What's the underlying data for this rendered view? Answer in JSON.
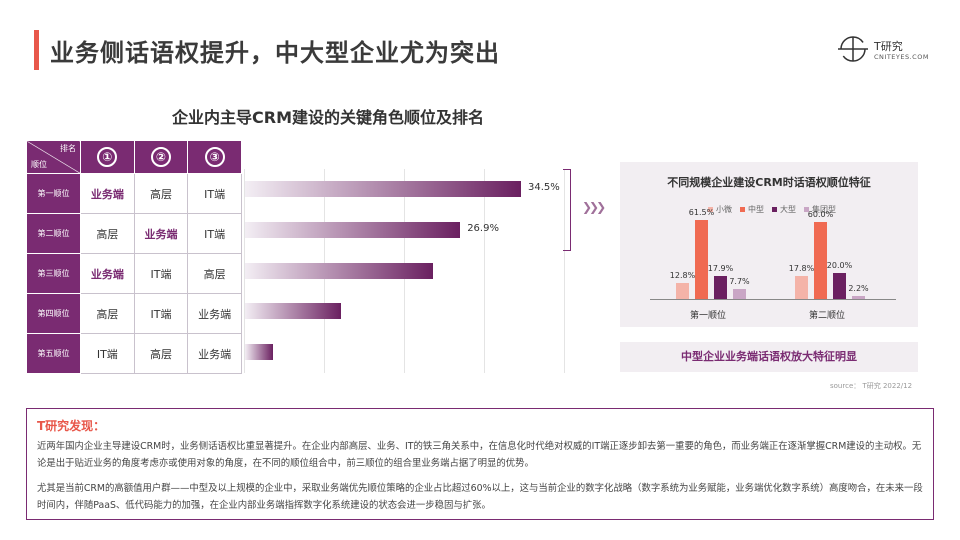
{
  "header": {
    "title": "业务侧话语权提升，中大型企业尤为突出",
    "logo_name": "T研究",
    "logo_url": "CNITEYES.COM"
  },
  "chart_title": "企业内主导CRM建设的关键角色顺位及排名",
  "rank_table": {
    "corner_top": "排名",
    "corner_bottom": "顺位",
    "ranks": [
      "①",
      "②",
      "③"
    ],
    "rows": [
      {
        "label": "第一顺位",
        "cells": [
          "业务端",
          "高层",
          "IT端"
        ]
      },
      {
        "label": "第二顺位",
        "cells": [
          "高层",
          "业务端",
          "IT端"
        ]
      },
      {
        "label": "第三顺位",
        "cells": [
          "业务端",
          "IT端",
          "高层"
        ]
      },
      {
        "label": "第四顺位",
        "cells": [
          "高层",
          "IT端",
          "业务端"
        ]
      },
      {
        "label": "第五顺位",
        "cells": [
          "IT端",
          "高层",
          "业务端"
        ]
      }
    ]
  },
  "chart_data": [
    {
      "type": "bar",
      "orientation": "horizontal",
      "categories": [
        "第一顺位",
        "第二顺位",
        "第三顺位",
        "第四顺位",
        "第五顺位"
      ],
      "values": [
        34.5,
        26.9,
        23.5,
        12.0,
        3.5
      ],
      "labels": [
        "34.5%",
        "26.9%",
        "",
        "",
        ""
      ],
      "xlim": [
        0,
        40
      ],
      "grid": true
    },
    {
      "type": "bar",
      "title": "不同规模企业建设CRM时话语权顺位特征",
      "categories": [
        "第一顺位",
        "第二顺位"
      ],
      "series": [
        {
          "name": "小微",
          "color": "#f4b3a8",
          "values": [
            12.8,
            17.8
          ],
          "labels": [
            "12.8%",
            "17.8%"
          ]
        },
        {
          "name": "中型",
          "color": "#f06a52",
          "values": [
            61.5,
            60.0
          ],
          "labels": [
            "61.5%",
            "60.0%"
          ]
        },
        {
          "name": "大型",
          "color": "#6a2060",
          "values": [
            17.9,
            20.0
          ],
          "labels": [
            "17.9%",
            "20.0%"
          ]
        },
        {
          "name": "集团型",
          "color": "#c9a6c5",
          "values": [
            7.7,
            2.2
          ],
          "labels": [
            "7.7%",
            "2.2%"
          ]
        }
      ],
      "ylim": [
        0,
        70
      ],
      "legend": "top"
    }
  ],
  "panel_caption": "中型企业业务端话语权放大特征明显",
  "source": "source：  T研究  2022/12",
  "findings": {
    "title": "T研究发现：",
    "p1": "近两年国内企业主导建设CRM时，业务侧话语权比重显著提升。在企业内部高层、业务、IT的铁三角关系中，在信息化时代绝对权威的IT端正逐步卸去第一重要的角色，而业务端正在逐渐掌握CRM建设的主动权。无论是出于贴近业务的角度考虑亦或使用对象的角度，在不同的顺位组合中，前三顺位的组合里业务端占据了明显的优势。",
    "p2": "尤其是当前CRM的高额值用户群——中型及以上规模的企业中，采取业务端优先顺位策略的企业占比超过60%以上，这与当前企业的数字化战略（数字系统为业务赋能，业务端优化数字系统）高度吻合，在未来一段时间内，伴随PaaS、低代码能力的加强，在企业内部业务端指挥数字化系统建设的状态会进一步稳固与扩张。"
  },
  "colors": {
    "accent": "#7a2b72",
    "highlight": "#e8574a"
  }
}
